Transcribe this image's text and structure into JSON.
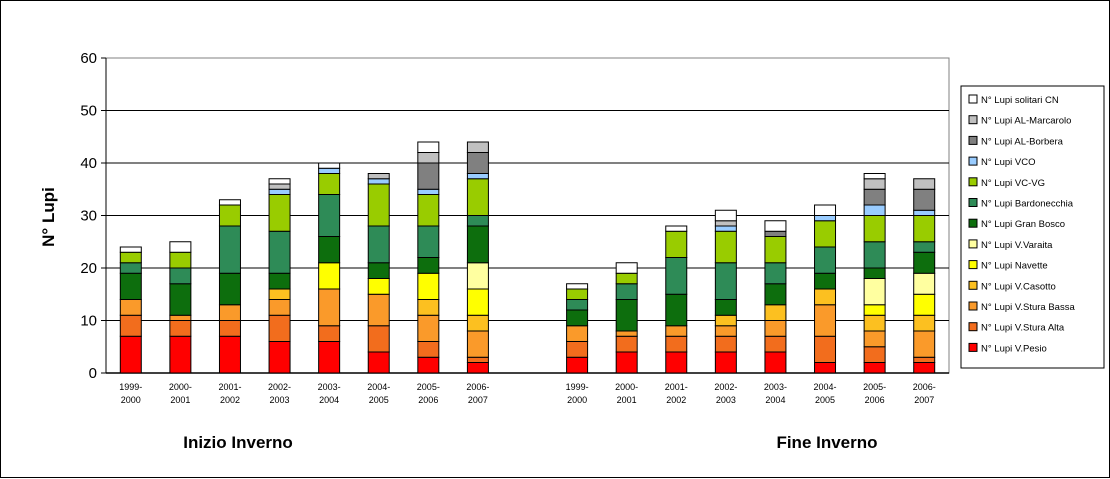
{
  "chart_data": {
    "type": "bar",
    "stacked": true,
    "ylabel": "N° Lupi",
    "ylim": [
      0,
      60
    ],
    "yticks": [
      0,
      10,
      20,
      30,
      40,
      50,
      60
    ],
    "grid": true,
    "legend_position": "right",
    "groups": [
      {
        "label": "Inizio Inverno",
        "categories": [
          [
            "1999-",
            "2000"
          ],
          [
            "2000-",
            "2001"
          ],
          [
            "2001-",
            "2002"
          ],
          [
            "2002-",
            "2003"
          ],
          [
            "2003-",
            "2004"
          ],
          [
            "2004-",
            "2005"
          ],
          [
            "2005-",
            "2006"
          ],
          [
            "2006-",
            "2007"
          ]
        ]
      },
      {
        "label": "Fine Inverno",
        "categories": [
          [
            "1999-",
            "2000"
          ],
          [
            "2000-",
            "2001"
          ],
          [
            "2001-",
            "2002"
          ],
          [
            "2002-",
            "2003"
          ],
          [
            "2003-",
            "2004"
          ],
          [
            "2004-",
            "2005"
          ],
          [
            "2005-",
            "2006"
          ],
          [
            "2006-",
            "2007"
          ]
        ]
      }
    ],
    "series": [
      {
        "name": "N° Lupi V.Pesio",
        "color": "#ff0000",
        "values": [
          7,
          7,
          7,
          6,
          6,
          4,
          3,
          2,
          3,
          4,
          4,
          4,
          4,
          2,
          2,
          2
        ]
      },
      {
        "name": "N° Lupi V.Stura Alta",
        "color": "#f26d1d",
        "values": [
          4,
          3,
          3,
          5,
          3,
          5,
          3,
          1,
          3,
          3,
          3,
          3,
          3,
          5,
          3,
          1
        ]
      },
      {
        "name": "N° Lupi V.Stura Bassa",
        "color": "#fa9a2a",
        "values": [
          3,
          1,
          3,
          3,
          7,
          6,
          5,
          5,
          3,
          1,
          2,
          2,
          3,
          6,
          3,
          5
        ]
      },
      {
        "name": "N° Lupi V.Casotto",
        "color": "#fcc020",
        "values": [
          0,
          0,
          0,
          2,
          0,
          0,
          3,
          3,
          0,
          0,
          0,
          2,
          3,
          3,
          3,
          3
        ]
      },
      {
        "name": "N° Lupi Navette",
        "color": "#ffff00",
        "values": [
          0,
          0,
          0,
          0,
          5,
          3,
          5,
          5,
          0,
          0,
          0,
          0,
          0,
          0,
          2,
          4
        ]
      },
      {
        "name": "N° Lupi V.Varaita",
        "color": "#ffffa0",
        "values": [
          0,
          0,
          0,
          0,
          0,
          0,
          0,
          5,
          0,
          0,
          0,
          0,
          0,
          0,
          5,
          4
        ]
      },
      {
        "name": "N° Lupi Gran Bosco",
        "color": "#0d6e0d",
        "values": [
          5,
          6,
          6,
          3,
          5,
          3,
          3,
          7,
          3,
          6,
          6,
          3,
          4,
          3,
          2,
          4
        ]
      },
      {
        "name": "N° Lupi Bardonecchia",
        "color": "#2e8b57",
        "values": [
          2,
          3,
          9,
          8,
          8,
          7,
          6,
          2,
          2,
          3,
          7,
          7,
          4,
          5,
          5,
          2
        ]
      },
      {
        "name": "N° Lupi VC-VG",
        "color": "#99cc00",
        "values": [
          2,
          3,
          4,
          7,
          4,
          8,
          6,
          7,
          2,
          2,
          5,
          6,
          5,
          5,
          5,
          5
        ]
      },
      {
        "name": "N° Lupi VCO",
        "color": "#99ccff",
        "values": [
          0,
          0,
          0,
          1,
          1,
          1,
          1,
          1,
          0,
          0,
          0,
          1,
          0,
          1,
          2,
          1
        ]
      },
      {
        "name": "N° Lupi AL-Borbera",
        "color": "#808080",
        "values": [
          0,
          0,
          0,
          0,
          0,
          0,
          5,
          4,
          0,
          0,
          0,
          0,
          1,
          0,
          3,
          4
        ]
      },
      {
        "name": "N° Lupi AL-Marcarolo",
        "color": "#c0c0c0",
        "values": [
          0,
          0,
          0,
          1,
          0,
          1,
          2,
          2,
          0,
          0,
          0,
          1,
          0,
          0,
          2,
          2
        ]
      },
      {
        "name": "N° Lupi solitari CN",
        "color": "#ffffff",
        "values": [
          1,
          2,
          1,
          1,
          1,
          0,
          2,
          0,
          1,
          2,
          1,
          2,
          2,
          2,
          1,
          0
        ]
      }
    ]
  }
}
